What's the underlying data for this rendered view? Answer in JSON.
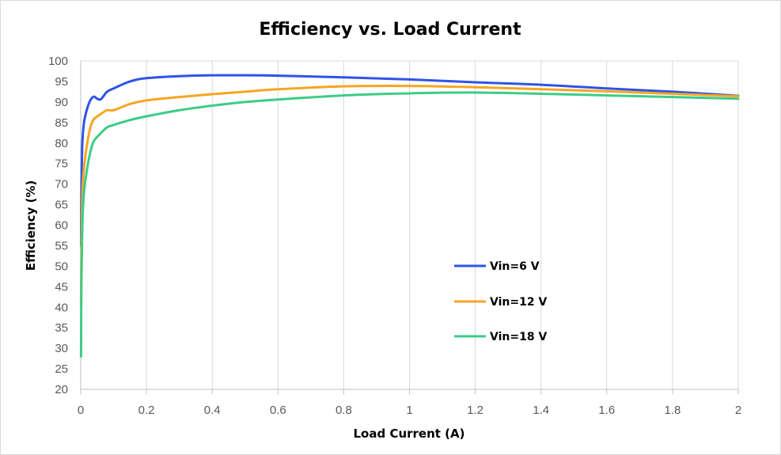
{
  "chart_data": {
    "type": "line",
    "title": "Efficiency vs. Load Current",
    "xlabel": "Load Current (A)",
    "ylabel": "Efficiency (%)",
    "xlim": [
      0,
      2
    ],
    "ylim": [
      20,
      100
    ],
    "x_ticks": [
      "0",
      "0.2",
      "0.4",
      "0.6",
      "0.8",
      "1",
      "1.2",
      "1.4",
      "1.6",
      "1.8",
      "2"
    ],
    "y_ticks": [
      "20",
      "25",
      "30",
      "35",
      "40",
      "45",
      "50",
      "55",
      "60",
      "65",
      "70",
      "75",
      "80",
      "85",
      "90",
      "95",
      "100"
    ],
    "grid": "vertical",
    "legend_position": "center-right",
    "series": [
      {
        "name": "Vin=6 V",
        "color": "#2e54e6",
        "points": [
          [
            0.001,
            55
          ],
          [
            0.002,
            68
          ],
          [
            0.005,
            80
          ],
          [
            0.01,
            85
          ],
          [
            0.02,
            88.5
          ],
          [
            0.03,
            90.5
          ],
          [
            0.04,
            91.3
          ],
          [
            0.05,
            90.8
          ],
          [
            0.06,
            90.6
          ],
          [
            0.07,
            91.5
          ],
          [
            0.08,
            92.5
          ],
          [
            0.1,
            93.3
          ],
          [
            0.15,
            95
          ],
          [
            0.2,
            95.8
          ],
          [
            0.3,
            96.3
          ],
          [
            0.4,
            96.5
          ],
          [
            0.5,
            96.5
          ],
          [
            0.6,
            96.4
          ],
          [
            0.8,
            96
          ],
          [
            1.0,
            95.5
          ],
          [
            1.2,
            94.8
          ],
          [
            1.4,
            94.2
          ],
          [
            1.6,
            93.3
          ],
          [
            1.8,
            92.5
          ],
          [
            2.0,
            91.5
          ]
        ]
      },
      {
        "name": "Vin=12 V",
        "color": "#f5a623",
        "points": [
          [
            0.001,
            40
          ],
          [
            0.002,
            55
          ],
          [
            0.005,
            68
          ],
          [
            0.01,
            74
          ],
          [
            0.02,
            80
          ],
          [
            0.03,
            84
          ],
          [
            0.04,
            85.8
          ],
          [
            0.06,
            87
          ],
          [
            0.08,
            88
          ],
          [
            0.1,
            88
          ],
          [
            0.15,
            89.5
          ],
          [
            0.2,
            90.4
          ],
          [
            0.3,
            91.2
          ],
          [
            0.4,
            91.9
          ],
          [
            0.5,
            92.5
          ],
          [
            0.6,
            93.1
          ],
          [
            0.8,
            93.8
          ],
          [
            1.0,
            93.9
          ],
          [
            1.2,
            93.6
          ],
          [
            1.4,
            93.1
          ],
          [
            1.6,
            92.6
          ],
          [
            1.8,
            92
          ],
          [
            2.0,
            91.4
          ]
        ]
      },
      {
        "name": "Vin=18 V",
        "color": "#3dcc88",
        "points": [
          [
            0.001,
            28
          ],
          [
            0.002,
            45
          ],
          [
            0.005,
            60
          ],
          [
            0.01,
            68
          ],
          [
            0.02,
            74
          ],
          [
            0.03,
            78
          ],
          [
            0.04,
            80.5
          ],
          [
            0.06,
            82.3
          ],
          [
            0.08,
            83.8
          ],
          [
            0.1,
            84.4
          ],
          [
            0.15,
            85.6
          ],
          [
            0.2,
            86.5
          ],
          [
            0.3,
            88
          ],
          [
            0.4,
            89.1
          ],
          [
            0.5,
            90
          ],
          [
            0.6,
            90.6
          ],
          [
            0.8,
            91.6
          ],
          [
            1.0,
            92.1
          ],
          [
            1.2,
            92.3
          ],
          [
            1.4,
            92
          ],
          [
            1.6,
            91.6
          ],
          [
            1.8,
            91.2
          ],
          [
            2.0,
            90.8
          ]
        ]
      }
    ]
  }
}
